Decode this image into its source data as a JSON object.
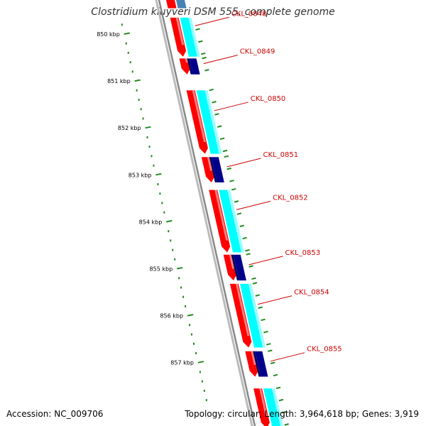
{
  "title": "Clostridium kluyveri DSM 555, complete genome",
  "footer": {
    "accession": "Accession: NC_009706",
    "summary": "Topology: circular; Length: 3,964,618 bp; Genes: 3,919"
  },
  "colors": {
    "gene_red": "#ff0000",
    "gene_cyan": "#00ffff",
    "gene_navy": "#00008b",
    "gene_steelblue": "#4682b4",
    "label_red": "#cc0000",
    "tick_green": "#228b22",
    "backbone_gray": "#888888"
  },
  "ruler": {
    "labels": [
      "850 kbp",
      "851 kbp",
      "852 kbp",
      "853 kbp",
      "854 kbp",
      "855 kbp",
      "856 kbp",
      "857 kbp"
    ]
  },
  "genes": [
    {
      "label": "CKL_0848",
      "start": 849650,
      "end": 850480,
      "type": "cds"
    },
    {
      "label": "CKL_0849",
      "start": 850520,
      "end": 850860,
      "type": "cds_small"
    },
    {
      "label": "CKL_0850",
      "start": 851200,
      "end": 852550,
      "type": "cds"
    },
    {
      "label": "CKL_0851",
      "start": 852620,
      "end": 853160,
      "type": "cds_small"
    },
    {
      "label": "CKL_0852",
      "start": 853320,
      "end": 854650,
      "type": "cds"
    },
    {
      "label": "CKL_0853",
      "start": 854700,
      "end": 855250,
      "type": "cds_small"
    },
    {
      "label": "CKL_0854",
      "start": 855320,
      "end": 856680,
      "type": "cds"
    },
    {
      "label": "CKL_0855",
      "start": 856760,
      "end": 857300,
      "type": "cds_small"
    },
    {
      "label": "",
      "start": 857550,
      "end": 858400,
      "type": "cds"
    }
  ]
}
